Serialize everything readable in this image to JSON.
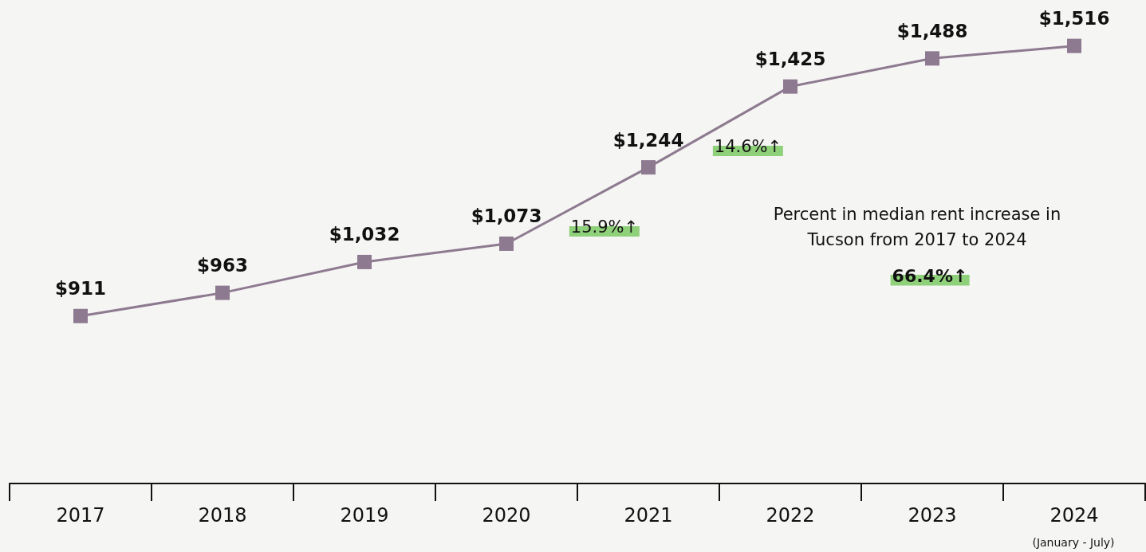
{
  "chart_data": {
    "type": "line",
    "categories": [
      "2017",
      "2018",
      "2019",
      "2020",
      "2021",
      "2022",
      "2023",
      "2024"
    ],
    "series": [
      {
        "color": "#8e7a90",
        "values": [
          911,
          963,
          1032,
          1073,
          1244,
          1425,
          1488,
          1516
        ],
        "value_labels": [
          "$911",
          "$963",
          "$1,032",
          "$1,073",
          "$1,244",
          "$1,425",
          "$1,488",
          "$1,516"
        ]
      }
    ],
    "tick_labels": "x",
    "grid": false,
    "marker": "square",
    "line_style": "solid",
    "annotations": [
      "15.9%↑",
      "14.6%↑",
      "Percent in median rent increase in Tucson from 2017 to 2024",
      "66.4%↑",
      "(January - July)"
    ]
  }
}
